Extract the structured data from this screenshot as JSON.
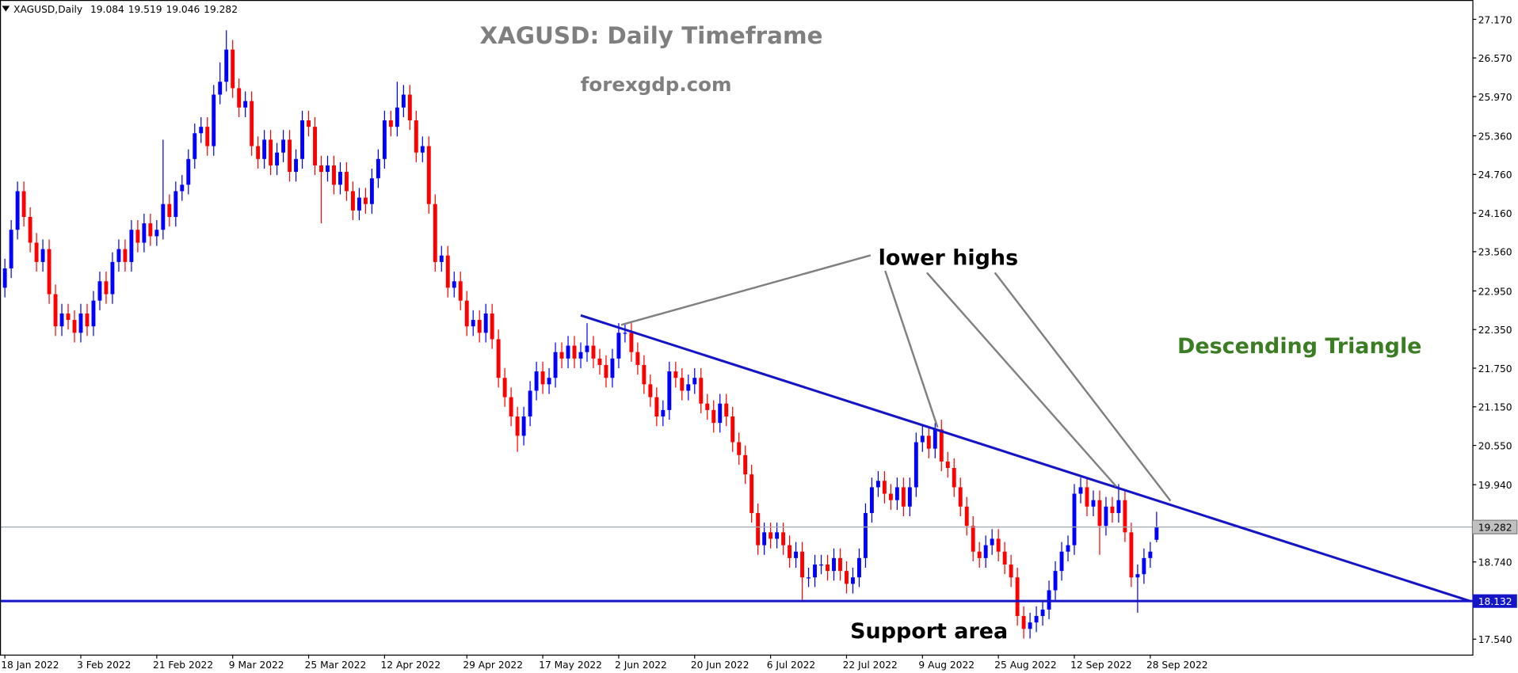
{
  "chart_data": {
    "type": "candlestick",
    "symbol": "XAGUSD,Daily",
    "title": "XAGUSD: Daily Timeframe",
    "subtitle": "forexgdp.com",
    "annotations": {
      "lower_highs": "lower highs",
      "support": "Support area",
      "pattern": "Descending Triangle"
    },
    "up_color": "#0000ff",
    "down_color": "#ff0000",
    "trend_color": "#1515c8",
    "pattern_color": "#3a7d22",
    "support_level": 18.132,
    "trendline": [
      [
        91,
        22.57
      ],
      [
        231.6,
        18.13
      ]
    ],
    "xlim": [
      -0.77,
      231.9
    ],
    "ylim": [
      17.3,
      27.47
    ],
    "xticks": [
      {
        "value": 0,
        "label": "18 Jan 2022"
      },
      {
        "value": 12,
        "label": "3 Feb 2022"
      },
      {
        "value": 24,
        "label": "21 Feb 2022"
      },
      {
        "value": 36,
        "label": "9 Mar 2022"
      },
      {
        "value": 48,
        "label": "25 Mar 2022"
      },
      {
        "value": 60,
        "label": "12 Apr 2022"
      },
      {
        "value": 73,
        "label": "29 Apr 2022"
      },
      {
        "value": 85,
        "label": "17 May 2022"
      },
      {
        "value": 97,
        "label": "2 Jun 2022"
      },
      {
        "value": 109,
        "label": "20 Jun 2022"
      },
      {
        "value": 121,
        "label": "6 Jul 2022"
      },
      {
        "value": 133,
        "label": "22 Jul 2022"
      },
      {
        "value": 145,
        "label": "9 Aug 2022"
      },
      {
        "value": 157,
        "label": "25 Aug 2022"
      },
      {
        "value": 169,
        "label": "12 Sep 2022"
      },
      {
        "value": 181,
        "label": "28 Sep 2022"
      }
    ],
    "yticks": [
      {
        "value": 27.17,
        "label": "27.170"
      },
      {
        "value": 26.57,
        "label": "26.570"
      },
      {
        "value": 25.97,
        "label": "25.970"
      },
      {
        "value": 25.36,
        "label": "25.360"
      },
      {
        "value": 24.76,
        "label": "24.760"
      },
      {
        "value": 24.16,
        "label": "24.160"
      },
      {
        "value": 23.56,
        "label": "23.560"
      },
      {
        "value": 22.95,
        "label": "22.950"
      },
      {
        "value": 22.35,
        "label": "22.350"
      },
      {
        "value": 21.75,
        "label": "21.750"
      },
      {
        "value": 21.15,
        "label": "21.150"
      },
      {
        "value": 20.55,
        "label": "20.550"
      },
      {
        "value": 19.94,
        "label": "19.940"
      },
      {
        "value": 18.74,
        "label": "18.740"
      },
      {
        "value": 17.54,
        "label": "17.540"
      }
    ],
    "candles": [
      [
        23.0,
        23.45,
        22.85,
        23.3
      ],
      [
        23.3,
        24.05,
        23.15,
        23.9
      ],
      [
        23.9,
        24.65,
        23.75,
        24.5
      ],
      [
        24.5,
        24.65,
        23.95,
        24.1
      ],
      [
        24.1,
        24.25,
        23.55,
        23.7
      ],
      [
        23.7,
        23.85,
        23.25,
        23.4
      ],
      [
        23.4,
        23.75,
        23.25,
        23.6
      ],
      [
        23.6,
        23.75,
        22.75,
        22.9
      ],
      [
        22.9,
        23.05,
        22.25,
        22.4
      ],
      [
        22.4,
        22.75,
        22.25,
        22.6
      ],
      [
        22.6,
        22.75,
        22.35,
        22.5
      ],
      [
        22.5,
        22.65,
        22.15,
        22.3
      ],
      [
        22.3,
        22.75,
        22.15,
        22.6
      ],
      [
        22.6,
        22.75,
        22.25,
        22.4
      ],
      [
        22.4,
        22.95,
        22.25,
        22.8
      ],
      [
        22.8,
        23.25,
        22.65,
        23.1
      ],
      [
        23.1,
        23.25,
        22.75,
        22.9
      ],
      [
        22.9,
        23.55,
        22.75,
        23.4
      ],
      [
        23.4,
        23.75,
        23.25,
        23.6
      ],
      [
        23.6,
        23.75,
        23.25,
        23.4
      ],
      [
        23.4,
        24.05,
        23.25,
        23.9
      ],
      [
        23.9,
        24.05,
        23.55,
        23.7
      ],
      [
        23.7,
        24.15,
        23.55,
        24.0
      ],
      [
        24.0,
        24.15,
        23.65,
        23.8
      ],
      [
        23.8,
        24.05,
        23.65,
        23.9
      ],
      [
        23.9,
        25.3,
        23.75,
        24.3
      ],
      [
        24.3,
        24.45,
        23.95,
        24.1
      ],
      [
        24.1,
        24.65,
        23.95,
        24.5
      ],
      [
        24.5,
        24.75,
        24.35,
        24.6
      ],
      [
        24.6,
        25.15,
        24.45,
        25.0
      ],
      [
        25.0,
        25.55,
        24.85,
        25.4
      ],
      [
        25.4,
        25.65,
        25.25,
        25.5
      ],
      [
        25.5,
        25.65,
        25.05,
        25.2
      ],
      [
        25.2,
        26.15,
        25.05,
        26.0
      ],
      [
        26.0,
        26.5,
        25.85,
        26.2
      ],
      [
        26.2,
        27.0,
        26.05,
        26.7
      ],
      [
        26.7,
        26.85,
        25.95,
        26.1
      ],
      [
        26.1,
        26.25,
        25.65,
        25.8
      ],
      [
        25.8,
        26.05,
        25.65,
        25.9
      ],
      [
        25.9,
        26.05,
        25.05,
        25.2
      ],
      [
        25.2,
        25.35,
        24.85,
        25.0
      ],
      [
        25.0,
        25.45,
        24.85,
        25.3
      ],
      [
        25.3,
        25.45,
        24.75,
        24.9
      ],
      [
        24.9,
        25.25,
        24.75,
        25.1
      ],
      [
        25.1,
        25.45,
        24.95,
        25.3
      ],
      [
        25.3,
        25.45,
        24.65,
        24.8
      ],
      [
        24.8,
        25.15,
        24.65,
        25.0
      ],
      [
        25.0,
        25.75,
        24.85,
        25.6
      ],
      [
        25.6,
        25.75,
        25.35,
        25.5
      ],
      [
        25.5,
        25.65,
        24.75,
        24.9
      ],
      [
        24.9,
        25.05,
        24.0,
        24.8
      ],
      [
        24.8,
        25.05,
        24.65,
        24.9
      ],
      [
        24.9,
        25.05,
        24.45,
        24.6
      ],
      [
        24.6,
        24.95,
        24.45,
        24.8
      ],
      [
        24.8,
        24.95,
        24.35,
        24.5
      ],
      [
        24.5,
        24.65,
        24.05,
        24.2
      ],
      [
        24.2,
        24.55,
        24.05,
        24.4
      ],
      [
        24.4,
        24.55,
        24.15,
        24.3
      ],
      [
        24.3,
        24.85,
        24.15,
        24.7
      ],
      [
        24.7,
        25.15,
        24.55,
        25.0
      ],
      [
        25.0,
        25.75,
        24.85,
        25.6
      ],
      [
        25.6,
        25.75,
        25.35,
        25.5
      ],
      [
        25.5,
        26.2,
        25.35,
        25.8
      ],
      [
        25.8,
        26.15,
        25.65,
        26.0
      ],
      [
        26.0,
        26.15,
        25.45,
        25.6
      ],
      [
        25.6,
        25.75,
        24.95,
        25.1
      ],
      [
        25.1,
        25.35,
        24.95,
        25.2
      ],
      [
        25.2,
        25.35,
        24.15,
        24.3
      ],
      [
        24.3,
        24.45,
        23.25,
        23.4
      ],
      [
        23.4,
        23.65,
        23.25,
        23.5
      ],
      [
        23.5,
        23.65,
        22.85,
        23.0
      ],
      [
        23.0,
        23.25,
        22.85,
        23.1
      ],
      [
        23.1,
        23.25,
        22.65,
        22.8
      ],
      [
        22.8,
        22.95,
        22.25,
        22.4
      ],
      [
        22.4,
        22.65,
        22.25,
        22.5
      ],
      [
        22.5,
        22.65,
        22.15,
        22.3
      ],
      [
        22.3,
        22.75,
        22.15,
        22.6
      ],
      [
        22.6,
        22.75,
        22.05,
        22.2
      ],
      [
        22.2,
        22.35,
        21.45,
        21.6
      ],
      [
        21.6,
        21.75,
        21.15,
        21.3
      ],
      [
        21.3,
        21.45,
        20.85,
        21.0
      ],
      [
        21.0,
        21.15,
        20.45,
        20.7
      ],
      [
        20.7,
        21.15,
        20.55,
        21.0
      ],
      [
        21.0,
        21.55,
        20.85,
        21.4
      ],
      [
        21.4,
        21.85,
        21.25,
        21.7
      ],
      [
        21.7,
        21.85,
        21.35,
        21.5
      ],
      [
        21.5,
        21.75,
        21.35,
        21.6
      ],
      [
        21.6,
        22.15,
        21.45,
        22.0
      ],
      [
        22.0,
        22.15,
        21.75,
        21.9
      ],
      [
        21.9,
        22.25,
        21.75,
        22.1
      ],
      [
        22.1,
        22.25,
        21.75,
        21.9
      ],
      [
        21.9,
        22.15,
        21.75,
        22.0
      ],
      [
        22.0,
        22.45,
        21.85,
        22.1
      ],
      [
        22.1,
        22.25,
        21.75,
        21.9
      ],
      [
        21.9,
        22.05,
        21.65,
        21.8
      ],
      [
        21.8,
        21.95,
        21.45,
        21.6
      ],
      [
        21.6,
        22.05,
        21.45,
        21.9
      ],
      [
        21.9,
        22.45,
        21.75,
        22.3
      ],
      [
        22.3,
        22.45,
        22.15,
        22.3
      ],
      [
        22.3,
        22.45,
        21.85,
        22.0
      ],
      [
        22.0,
        22.15,
        21.65,
        21.8
      ],
      [
        21.8,
        21.95,
        21.35,
        21.5
      ],
      [
        21.5,
        21.65,
        21.15,
        21.3
      ],
      [
        21.3,
        21.45,
        20.85,
        21.0
      ],
      [
        21.0,
        21.25,
        20.85,
        21.1
      ],
      [
        21.1,
        21.85,
        20.95,
        21.7
      ],
      [
        21.7,
        21.85,
        21.45,
        21.6
      ],
      [
        21.6,
        21.75,
        21.25,
        21.4
      ],
      [
        21.4,
        21.65,
        21.25,
        21.5
      ],
      [
        21.5,
        21.75,
        21.35,
        21.6
      ],
      [
        21.6,
        21.75,
        21.05,
        21.2
      ],
      [
        21.2,
        21.35,
        20.95,
        21.1
      ],
      [
        21.1,
        21.25,
        20.75,
        20.9
      ],
      [
        20.9,
        21.35,
        20.75,
        21.2
      ],
      [
        21.2,
        21.35,
        20.85,
        21.0
      ],
      [
        21.0,
        21.15,
        20.45,
        20.6
      ],
      [
        20.6,
        20.75,
        20.25,
        20.4
      ],
      [
        20.4,
        20.55,
        19.95,
        20.1
      ],
      [
        20.1,
        20.25,
        19.35,
        19.5
      ],
      [
        19.5,
        19.65,
        18.85,
        19.0
      ],
      [
        19.0,
        19.35,
        18.85,
        19.2
      ],
      [
        19.2,
        19.35,
        18.95,
        19.1
      ],
      [
        19.1,
        19.35,
        18.95,
        19.2
      ],
      [
        19.2,
        19.35,
        18.85,
        19.0
      ],
      [
        19.0,
        19.15,
        18.65,
        18.8
      ],
      [
        18.8,
        19.05,
        18.65,
        18.9
      ],
      [
        18.9,
        19.05,
        18.15,
        18.5
      ],
      [
        18.5,
        18.65,
        18.35,
        18.5
      ],
      [
        18.5,
        18.85,
        18.35,
        18.7
      ],
      [
        18.7,
        18.85,
        18.55,
        18.7
      ],
      [
        18.7,
        18.85,
        18.45,
        18.6
      ],
      [
        18.6,
        18.95,
        18.45,
        18.8
      ],
      [
        18.8,
        18.95,
        18.45,
        18.6
      ],
      [
        18.6,
        18.75,
        18.25,
        18.4
      ],
      [
        18.4,
        18.65,
        18.25,
        18.5
      ],
      [
        18.5,
        18.95,
        18.35,
        18.8
      ],
      [
        18.8,
        19.65,
        18.65,
        19.5
      ],
      [
        19.5,
        20.05,
        19.35,
        19.9
      ],
      [
        19.9,
        20.15,
        19.75,
        20.0
      ],
      [
        20.0,
        20.15,
        19.65,
        19.8
      ],
      [
        19.8,
        19.95,
        19.55,
        19.7
      ],
      [
        19.7,
        20.05,
        19.55,
        19.9
      ],
      [
        19.9,
        20.05,
        19.45,
        19.6
      ],
      [
        19.6,
        20.05,
        19.45,
        19.9
      ],
      [
        19.9,
        20.75,
        19.75,
        20.6
      ],
      [
        20.6,
        20.85,
        20.45,
        20.7
      ],
      [
        20.7,
        20.85,
        20.35,
        20.5
      ],
      [
        20.5,
        20.9,
        20.35,
        20.8
      ],
      [
        20.8,
        20.95,
        20.15,
        20.3
      ],
      [
        20.3,
        20.45,
        20.05,
        20.2
      ],
      [
        20.2,
        20.35,
        19.75,
        19.9
      ],
      [
        19.9,
        20.05,
        19.45,
        19.6
      ],
      [
        19.6,
        19.75,
        19.15,
        19.3
      ],
      [
        19.3,
        19.45,
        18.75,
        18.9
      ],
      [
        18.9,
        19.05,
        18.65,
        18.8
      ],
      [
        18.8,
        19.15,
        18.65,
        19.0
      ],
      [
        19.0,
        19.25,
        18.85,
        19.1
      ],
      [
        19.1,
        19.25,
        18.75,
        18.9
      ],
      [
        18.9,
        19.05,
        18.55,
        18.7
      ],
      [
        18.7,
        18.85,
        18.35,
        18.5
      ],
      [
        18.5,
        18.65,
        17.75,
        17.9
      ],
      [
        17.9,
        18.05,
        17.55,
        17.7
      ],
      [
        17.7,
        17.95,
        17.55,
        17.8
      ],
      [
        17.8,
        18.05,
        17.65,
        17.9
      ],
      [
        17.9,
        18.15,
        17.75,
        18.0
      ],
      [
        18.0,
        18.45,
        17.85,
        18.3
      ],
      [
        18.3,
        18.75,
        18.15,
        18.6
      ],
      [
        18.6,
        19.05,
        18.45,
        18.9
      ],
      [
        18.9,
        19.15,
        18.75,
        19.0
      ],
      [
        19.0,
        19.95,
        18.85,
        19.8
      ],
      [
        19.8,
        20.05,
        19.65,
        19.9
      ],
      [
        19.9,
        20.05,
        19.45,
        19.6
      ],
      [
        19.6,
        19.85,
        19.45,
        19.7
      ],
      [
        19.7,
        19.85,
        18.85,
        19.3
      ],
      [
        19.3,
        19.75,
        19.15,
        19.6
      ],
      [
        19.6,
        19.75,
        19.35,
        19.5
      ],
      [
        19.5,
        19.95,
        19.35,
        19.7
      ],
      [
        19.7,
        19.85,
        19.05,
        19.2
      ],
      [
        19.2,
        19.35,
        18.35,
        18.5
      ],
      [
        18.5,
        18.7,
        17.95,
        18.55
      ],
      [
        18.55,
        18.95,
        18.4,
        18.8
      ],
      [
        18.8,
        19.05,
        18.65,
        18.9
      ],
      [
        19.084,
        19.519,
        19.046,
        19.282
      ]
    ]
  }
}
